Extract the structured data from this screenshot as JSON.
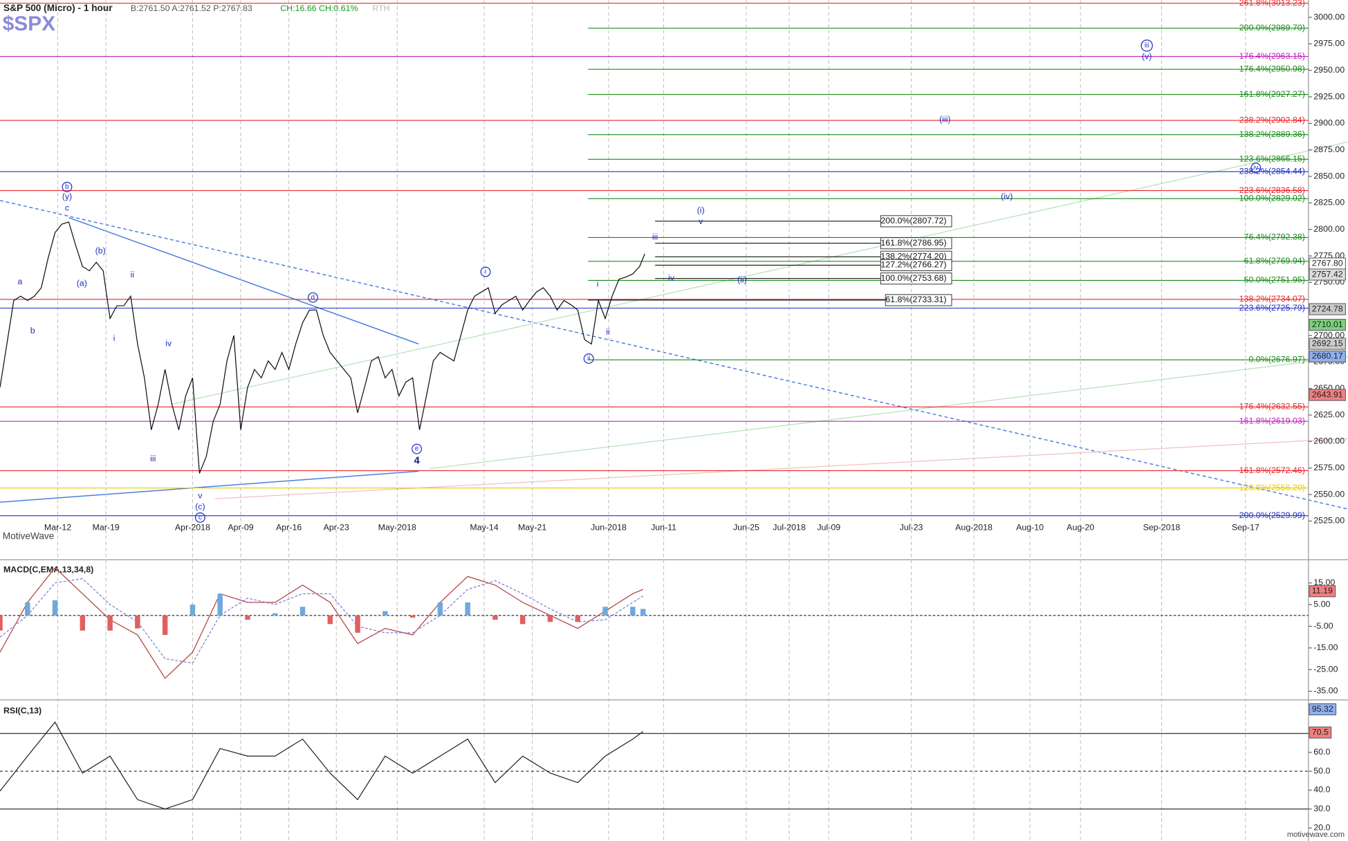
{
  "chart_data": [
    {
      "type": "line",
      "title": "S&P 500 (Micro) - 1 hour",
      "quote": "B:2761.50  A:2761.52  P:2767.83",
      "change": "CH:16.66  CH:0.61%",
      "session": "RTH",
      "symbol": "$SPX",
      "watermark": "MotiveWave",
      "footer": "motivewave.com",
      "color": "#111111",
      "xlim": [
        0,
        190.25
      ],
      "xticks": [
        {
          "value": 8.4,
          "label": "Mar-12"
        },
        {
          "value": 15.4,
          "label": "Mar-19"
        },
        {
          "value": 28,
          "label": "Apr-2018"
        },
        {
          "value": 35,
          "label": "Apr-09"
        },
        {
          "value": 42,
          "label": "Apr-16"
        },
        {
          "value": 48.9,
          "label": "Apr-23"
        },
        {
          "value": 57.75,
          "label": "May-2018"
        },
        {
          "value": 70.4,
          "label": "May-14"
        },
        {
          "value": 77.4,
          "label": "May-21"
        },
        {
          "value": 88.5,
          "label": "Jun-2018"
        },
        {
          "value": 96.5,
          "label": "Jun-11"
        },
        {
          "value": 108.5,
          "label": "Jun-25"
        },
        {
          "value": 114.75,
          "label": "Jul-2018"
        },
        {
          "value": 120.5,
          "label": "Jul-09"
        },
        {
          "value": 132.5,
          "label": "Jul-23"
        },
        {
          "value": 141.6,
          "label": "Aug-2018"
        },
        {
          "value": 149.75,
          "label": "Aug-10"
        },
        {
          "value": 157.1,
          "label": "Aug-20"
        },
        {
          "value": 168.9,
          "label": "Sep-2018"
        },
        {
          "value": 181.1,
          "label": "Sep-17"
        }
      ],
      "ylim": [
        2503.9,
        3016.2
      ],
      "yticks": [
        {
          "value": 2525,
          "label": "2525.00"
        },
        {
          "value": 2550,
          "label": "2550.00"
        },
        {
          "value": 2575,
          "label": "2575.00"
        },
        {
          "value": 2600,
          "label": "2600.00"
        },
        {
          "value": 2625,
          "label": "2625.00"
        },
        {
          "value": 2650,
          "label": "2650.00"
        },
        {
          "value": 2675,
          "label": "2675.00"
        },
        {
          "value": 2700,
          "label": "2700.00"
        },
        {
          "value": 2725,
          "label": "2725.00"
        },
        {
          "value": 2750,
          "label": "2750.00"
        },
        {
          "value": 2775,
          "label": "2775.00"
        },
        {
          "value": 2800,
          "label": "2800.00"
        },
        {
          "value": 2825,
          "label": "2825.00"
        },
        {
          "value": 2850,
          "label": "2850.00"
        },
        {
          "value": 2875,
          "label": "2875.00"
        },
        {
          "value": 2900,
          "label": "2900.00"
        },
        {
          "value": 2925,
          "label": "2925.00"
        },
        {
          "value": 2950,
          "label": "2950.00"
        },
        {
          "value": 2975,
          "label": "2975.00"
        },
        {
          "value": 3000,
          "label": "3000.00"
        }
      ],
      "x": [
        0,
        1,
        2,
        3,
        4,
        5,
        6,
        7,
        8,
        9,
        10,
        11,
        12,
        13,
        14,
        15,
        16,
        17,
        18,
        19,
        20,
        21,
        22,
        23,
        24,
        25,
        26,
        27,
        28,
        29,
        30,
        31,
        32,
        33,
        34,
        35,
        36,
        37,
        38,
        39,
        40,
        41,
        42,
        43,
        44,
        45,
        46,
        47,
        48,
        49,
        50,
        51,
        52,
        53,
        54,
        55,
        56,
        57,
        58,
        59,
        60,
        61,
        62,
        63,
        64,
        65,
        66,
        67,
        68,
        69,
        70,
        71,
        72,
        73,
        74,
        75,
        76,
        77,
        78,
        79,
        80,
        81,
        82,
        83,
        84,
        85,
        86,
        87,
        88,
        89,
        90,
        91,
        92,
        93,
        93.75
      ],
      "values": [
        2651,
        2692,
        2733,
        2737,
        2733,
        2737,
        2745,
        2773,
        2797,
        2805,
        2807,
        2785,
        2765,
        2761,
        2769,
        2761,
        2716,
        2728,
        2728,
        2737,
        2692,
        2660,
        2611,
        2635,
        2668,
        2635,
        2611,
        2643,
        2660,
        2570,
        2586,
        2619,
        2635,
        2676,
        2700,
        2611,
        2651,
        2668,
        2660,
        2676,
        2668,
        2684,
        2668,
        2692,
        2712,
        2724,
        2724,
        2700,
        2684,
        2676,
        2668,
        2660,
        2627,
        2651,
        2676,
        2680,
        2660,
        2668,
        2643,
        2656,
        2660,
        2611,
        2643,
        2676,
        2684,
        2680,
        2676,
        2700,
        2724,
        2737,
        2741,
        2745,
        2721,
        2729,
        2733,
        2737,
        2724,
        2733,
        2741,
        2745,
        2737,
        2724,
        2733,
        2729,
        2724,
        2696,
        2692,
        2733,
        2716,
        2737,
        2753,
        2755,
        2758,
        2765,
        2777
      ],
      "levels": [
        {
          "label": "261.8%(3013.23)",
          "value": 3013.23,
          "color": "#e8262a",
          "from": 0
        },
        {
          "label": "176.4%(2963.15)",
          "value": 2963.15,
          "color": "#c020c0",
          "from": 0
        },
        {
          "label": "238.2%(2902.84)",
          "value": 2902.84,
          "color": "#e8262a",
          "from": 0
        },
        {
          "label": "238.2%(2854.44)",
          "value": 2854.44,
          "color": "#2030c0",
          "from": 0
        },
        {
          "label": "223.6%(2836.58)",
          "value": 2836.58,
          "color": "#e8262a",
          "from": 0
        },
        {
          "label": "138.2%(2734.07)",
          "value": 2734.07,
          "color": "#e8262a",
          "from": 0
        },
        {
          "label": "223.6%(2725.79)",
          "value": 2725.79,
          "color": "#2030c0",
          "from": 0
        },
        {
          "label": "176.4%(2632.55)",
          "value": 2632.55,
          "color": "#e8262a",
          "from": 0
        },
        {
          "label": "161.8%(2619.03)",
          "value": 2619.03,
          "color": "#c020c0",
          "from": 0
        },
        {
          "label": "161.8%(2572.46)",
          "value": 2572.46,
          "color": "#e8262a",
          "from": 0
        },
        {
          "label": "123.6%(2556.20)",
          "value": 2556.2,
          "color": "#e8c800",
          "from": 0
        },
        {
          "label": "200.0%(2529.99)",
          "value": 2529.99,
          "color": "#2030c0",
          "from": 0
        },
        {
          "label": "200.0%(2989.70)",
          "value": 2989.7,
          "color": "#1a8a1a",
          "from": 85.5
        },
        {
          "label": "176.4%(2950.98)",
          "value": 2950.98,
          "color": "#1a8a1a",
          "from": 85.5
        },
        {
          "label": "161.8%(2927.27)",
          "value": 2927.27,
          "color": "#1a8a1a",
          "from": 85.5
        },
        {
          "label": "138.2%(2889.36)",
          "value": 2889.36,
          "color": "#1a8a1a",
          "from": 85.5
        },
        {
          "label": "123.6%(2866.15)",
          "value": 2866.15,
          "color": "#1a8a1a",
          "from": 85.5
        },
        {
          "label": "100.0%(2829.02)",
          "value": 2829.02,
          "color": "#1a8a1a",
          "from": 85.5
        },
        {
          "label": "76.4%(2792.38)",
          "value": 2792.38,
          "color": "#1a8a1a",
          "from": 85.5
        },
        {
          "label": "61.8%(2769.94)",
          "value": 2769.94,
          "color": "#1a8a1a",
          "from": 85.5
        },
        {
          "label": "50.0%(2751.95)",
          "value": 2751.95,
          "color": "#1a8a1a",
          "from": 85.5
        },
        {
          "label": "0.0%(2676.97)",
          "value": 2676.97,
          "color": "#1a8a1a",
          "from": 85.5
        },
        {
          "label": "200.0%(2807.72)",
          "value": 2807.72,
          "color": "#111111",
          "from": 95.25,
          "to": 138,
          "box": true
        },
        {
          "label": "161.8%(2786.95)",
          "value": 2786.95,
          "color": "#111111",
          "from": 95.25,
          "to": 138,
          "box": true
        },
        {
          "label": "138.2%(2774.20)",
          "value": 2774.2,
          "color": "#111111",
          "from": 95.25,
          "to": 138,
          "box": true
        },
        {
          "label": "127.2%(2766.27)",
          "value": 2766.27,
          "color": "#111111",
          "from": 95.25,
          "to": 138,
          "box": true
        },
        {
          "label": "100.0%(2753.68)",
          "value": 2753.68,
          "color": "#111111",
          "from": 95.25,
          "to": 138,
          "box": true
        },
        {
          "label": "61.8%(2733.31)",
          "value": 2733.31,
          "color": "#111111",
          "from": 85.5,
          "to": 138,
          "box": true
        }
      ],
      "waves": [
        {
          "text": "b",
          "x": 9.75,
          "y": 2840,
          "circled": true
        },
        {
          "text": "(y)",
          "x": 9.75,
          "y": 2830.6
        },
        {
          "text": "c",
          "x": 9.75,
          "y": 2820
        },
        {
          "text": "a",
          "x": 2.9,
          "y": 2750.3
        },
        {
          "text": "b",
          "x": 4.75,
          "y": 2704
        },
        {
          "text": "(a)",
          "x": 11.9,
          "y": 2748.7
        },
        {
          "text": "(b)",
          "x": 14.6,
          "y": 2779.5
        },
        {
          "text": "ii",
          "x": 19.25,
          "y": 2756.8
        },
        {
          "text": "i",
          "x": 16.6,
          "y": 2696.8
        },
        {
          "text": "iv",
          "x": 24.5,
          "y": 2692
        },
        {
          "text": "iii",
          "x": 22.25,
          "y": 2583.4
        },
        {
          "text": "v",
          "x": 29.1,
          "y": 2548.5
        },
        {
          "text": "(c)",
          "x": 29.1,
          "y": 2538
        },
        {
          "text": "c",
          "x": 29.1,
          "y": 2528.3,
          "circled": true
        },
        {
          "text": "d",
          "x": 45.5,
          "y": 2735.8,
          "circled": true
        },
        {
          "text": "e",
          "x": 60.6,
          "y": 2593,
          "circled": true
        },
        {
          "text": "4",
          "x": 60.6,
          "y": 2581.7,
          "bold": true
        },
        {
          "text": "i",
          "x": 70.6,
          "y": 2760,
          "circled": true
        },
        {
          "text": "ii",
          "x": 85.6,
          "y": 2678.2,
          "circled": true
        },
        {
          "text": "i",
          "x": 86.9,
          "y": 2748
        },
        {
          "text": "ii",
          "x": 88.4,
          "y": 2703.3
        },
        {
          "text": "iii",
          "x": 95.25,
          "y": 2792.5
        },
        {
          "text": "iv",
          "x": 97.6,
          "y": 2753.6
        },
        {
          "text": "(ii)",
          "x": 107.9,
          "y": 2752
        },
        {
          "text": "(i)",
          "x": 101.9,
          "y": 2817.6
        },
        {
          "text": "v",
          "x": 101.9,
          "y": 2807
        },
        {
          "text": "(iii)",
          "x": 137.4,
          "y": 2903.5
        },
        {
          "text": "(iv)",
          "x": 146.4,
          "y": 2830.6
        },
        {
          "text": "iv",
          "x": 182.6,
          "y": 2858,
          "circled": true
        },
        {
          "text": "iii",
          "x": 166.75,
          "y": 2973.3,
          "circled": true
        },
        {
          "text": "(v)",
          "x": 166.75,
          "y": 2962.7
        }
      ],
      "price_boxes": [
        {
          "value": 2767.8,
          "label": "2767.80",
          "color": "#ffffff"
        },
        {
          "value": 2757.42,
          "label": "2757.42",
          "color": "#dddddd"
        },
        {
          "value": 2724.78,
          "label": "2724.78",
          "color": "#cccccc"
        },
        {
          "value": 2710.01,
          "label": "2710.01",
          "color": "#7ed07e"
        },
        {
          "value": 2692.15,
          "label": "2692.15",
          "color": "#cccccc"
        },
        {
          "value": 2680.17,
          "label": "2680.17",
          "color": "#8fb0f0"
        },
        {
          "value": 2643.91,
          "label": "2643.91",
          "color": "#f08080"
        }
      ]
    },
    {
      "type": "macd",
      "title": "MACD(C,EMA,13,34,8)",
      "ylim": [
        -38.2,
        24.9
      ],
      "yticks": [
        {
          "value": 15,
          "label": "15.00"
        },
        {
          "value": 5,
          "label": "5.00"
        },
        {
          "value": -5,
          "label": "-5.00"
        },
        {
          "value": -15,
          "label": "-15.00"
        },
        {
          "value": -25,
          "label": "-25.00"
        },
        {
          "value": -35,
          "label": "-35.00"
        }
      ],
      "x": [
        0,
        4,
        8,
        12,
        16,
        20,
        24,
        28,
        32,
        36,
        40,
        44,
        48,
        52,
        56,
        60,
        64,
        68,
        72,
        76,
        80,
        84,
        88,
        92,
        93.5
      ],
      "series": [
        {
          "name": "macd",
          "color": "#b04040",
          "values": [
            -17,
            6,
            22,
            10,
            -2,
            -9,
            -29,
            -17,
            10,
            6,
            6,
            14,
            6,
            -13,
            -6,
            -9,
            6,
            18,
            14,
            6,
            0,
            -6,
            2,
            10,
            12
          ]
        },
        {
          "name": "signal",
          "color": "#7a7ad8",
          "values": [
            -10,
            0,
            15,
            17,
            5,
            -3,
            -20,
            -22,
            0,
            8,
            5,
            10,
            10,
            -5,
            -8,
            -8,
            0,
            12,
            16,
            10,
            3,
            -3,
            -2,
            6,
            9
          ]
        },
        {
          "name": "histogram",
          "color": "#6fa8dc",
          "negative_color": "#e06060",
          "values": [
            -7,
            6,
            7,
            -7,
            -7,
            -6,
            -9,
            5,
            10,
            -2,
            1,
            4,
            -4,
            -8,
            2,
            -1,
            6,
            6,
            -2,
            -4,
            -3,
            -3,
            4,
            4,
            3
          ]
        }
      ],
      "current": {
        "value": 11.19
      }
    },
    {
      "type": "line",
      "title": "RSI(C,13)",
      "color": "#222222",
      "ylim": [
        14.5,
        86.4
      ],
      "yticks": [
        {
          "value": 20,
          "label": "20.0"
        },
        {
          "value": 30,
          "label": "30.0"
        },
        {
          "value": 40,
          "label": "40.0"
        },
        {
          "value": 50,
          "label": "50.0"
        },
        {
          "value": 60,
          "label": "60.0"
        }
      ],
      "levels": [
        70,
        50,
        30
      ],
      "x": [
        0,
        4,
        8,
        12,
        16,
        20,
        24,
        28,
        32,
        36,
        40,
        44,
        48,
        52,
        56,
        60,
        64,
        68,
        72,
        76,
        80,
        84,
        88,
        92,
        93.5
      ],
      "values": [
        39.5,
        58,
        76,
        49,
        58,
        35,
        30,
        35,
        62,
        58,
        58,
        67,
        49,
        35,
        58,
        49,
        58,
        67,
        44,
        58,
        49,
        44,
        58,
        67,
        71
      ],
      "current": {
        "value": 70.5
      },
      "upper": {
        "value": 95.32
      }
    }
  ]
}
